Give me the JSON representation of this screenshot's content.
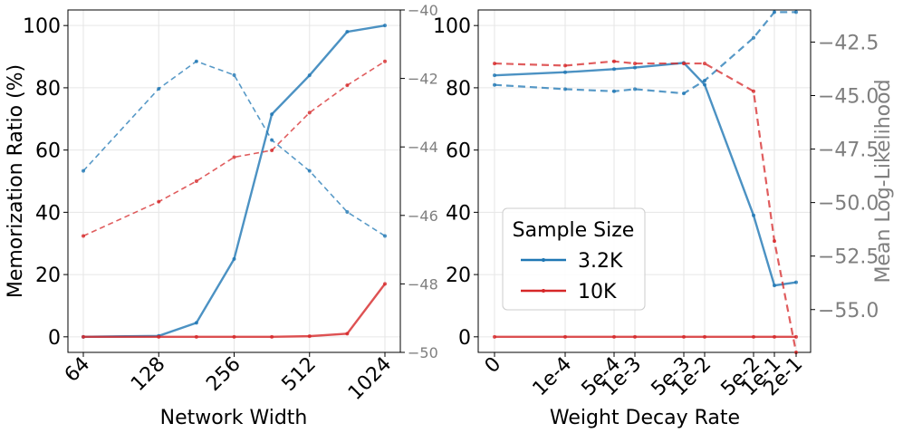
{
  "chart_data": [
    {
      "type": "line",
      "xlabel": "Network Width",
      "ylabel": "Memorization Ratio (%)",
      "x_tick_labels": [
        "64",
        "128",
        "256",
        "512",
        "1024"
      ],
      "x_values": [
        64,
        128,
        181,
        256,
        362,
        512,
        724,
        1024
      ],
      "ylim": [
        -5,
        105
      ],
      "y_ticks": [
        0,
        20,
        40,
        60,
        80,
        100
      ],
      "y2lim": [
        -50,
        -40
      ],
      "y2_ticks": [
        -50,
        -48,
        -46,
        -44,
        -42,
        -40
      ],
      "series": [
        {
          "name": "3.2K memorization",
          "color": "#1f77b4",
          "style": "solid",
          "axis": "left",
          "values": [
            0,
            0.3,
            4.5,
            25,
            71.5,
            84,
            98,
            100
          ]
        },
        {
          "name": "10K memorization",
          "color": "#d62728",
          "style": "solid",
          "axis": "left",
          "values": [
            0,
            0,
            0,
            0,
            0,
            0.2,
            1,
            17
          ]
        },
        {
          "name": "3.2K log-likelihood",
          "color": "#1f77b4",
          "style": "dashed",
          "axis": "right",
          "values": [
            -44.7,
            -42.3,
            -41.5,
            -41.9,
            -43.8,
            -44.7,
            -45.9,
            -46.6
          ]
        },
        {
          "name": "10K log-likelihood",
          "color": "#d62728",
          "style": "dashed",
          "axis": "right",
          "values": [
            -46.6,
            -45.6,
            -45.0,
            -44.3,
            -44.1,
            -43.0,
            -42.2,
            -41.5
          ]
        }
      ]
    },
    {
      "type": "line",
      "xlabel": "Weight Decay Rate",
      "ylabel": "",
      "y2label": "Mean Log-Likelihood",
      "x_tick_labels": [
        "0",
        "1e-4",
        "5e-4",
        "1e-3",
        "5e-3",
        "1e-2",
        "5e-2",
        "1e-1",
        "2e-1"
      ],
      "ylim": [
        -5,
        105
      ],
      "y_ticks": [
        0,
        20,
        40,
        60,
        80,
        100
      ],
      "y2lim": [
        -57,
        -41
      ],
      "y2_ticks": [
        -42.5,
        -45.0,
        -47.5,
        -50.0,
        -52.5,
        -55.0
      ],
      "y2_tick_labels": [
        "−42.5",
        "−45.0",
        "−47.5",
        "−50.0",
        "−52.5",
        "−55.0"
      ],
      "legend": {
        "title": "Sample Size",
        "entries": [
          "3.2K",
          "10K"
        ],
        "position": "lower-left"
      },
      "series": [
        {
          "name": "3.2K",
          "color": "#1f77b4",
          "style": "solid",
          "axis": "left",
          "x": [
            "0",
            "1e-4",
            "5e-4",
            "1e-3",
            "5e-3",
            "1e-2",
            "5e-2",
            "1e-1",
            "2e-1"
          ],
          "values": [
            84,
            85,
            86,
            86.5,
            88,
            81,
            39,
            16.5,
            17.5
          ]
        },
        {
          "name": "10K",
          "color": "#d62728",
          "style": "solid",
          "axis": "left",
          "x": [
            "0",
            "1e-4",
            "5e-4",
            "1e-3",
            "5e-3",
            "1e-2",
            "5e-2",
            "1e-1",
            "2e-1"
          ],
          "values": [
            0,
            0,
            0,
            0,
            0,
            0,
            0,
            0,
            0
          ]
        },
        {
          "name": "3.2K log-likelihood",
          "color": "#1f77b4",
          "style": "dashed",
          "axis": "right",
          "x": [
            "0",
            "1e-4",
            "5e-4",
            "1e-3",
            "5e-3",
            "1e-2",
            "5e-2",
            "1e-1",
            "2e-1"
          ],
          "values": [
            -44.5,
            -44.7,
            -44.8,
            -44.7,
            -44.9,
            -44.3,
            -42.3,
            -41.1,
            -41.1
          ]
        },
        {
          "name": "10K log-likelihood",
          "color": "#d62728",
          "style": "dashed",
          "axis": "right",
          "x": [
            "0",
            "1e-4",
            "5e-4",
            "1e-3",
            "5e-3",
            "1e-2",
            "5e-2",
            "1e-1",
            "2e-1"
          ],
          "values": [
            -43.5,
            -43.6,
            -43.4,
            -43.5,
            -43.5,
            -43.5,
            -44.8,
            -51.8,
            -57.0
          ]
        }
      ]
    }
  ]
}
